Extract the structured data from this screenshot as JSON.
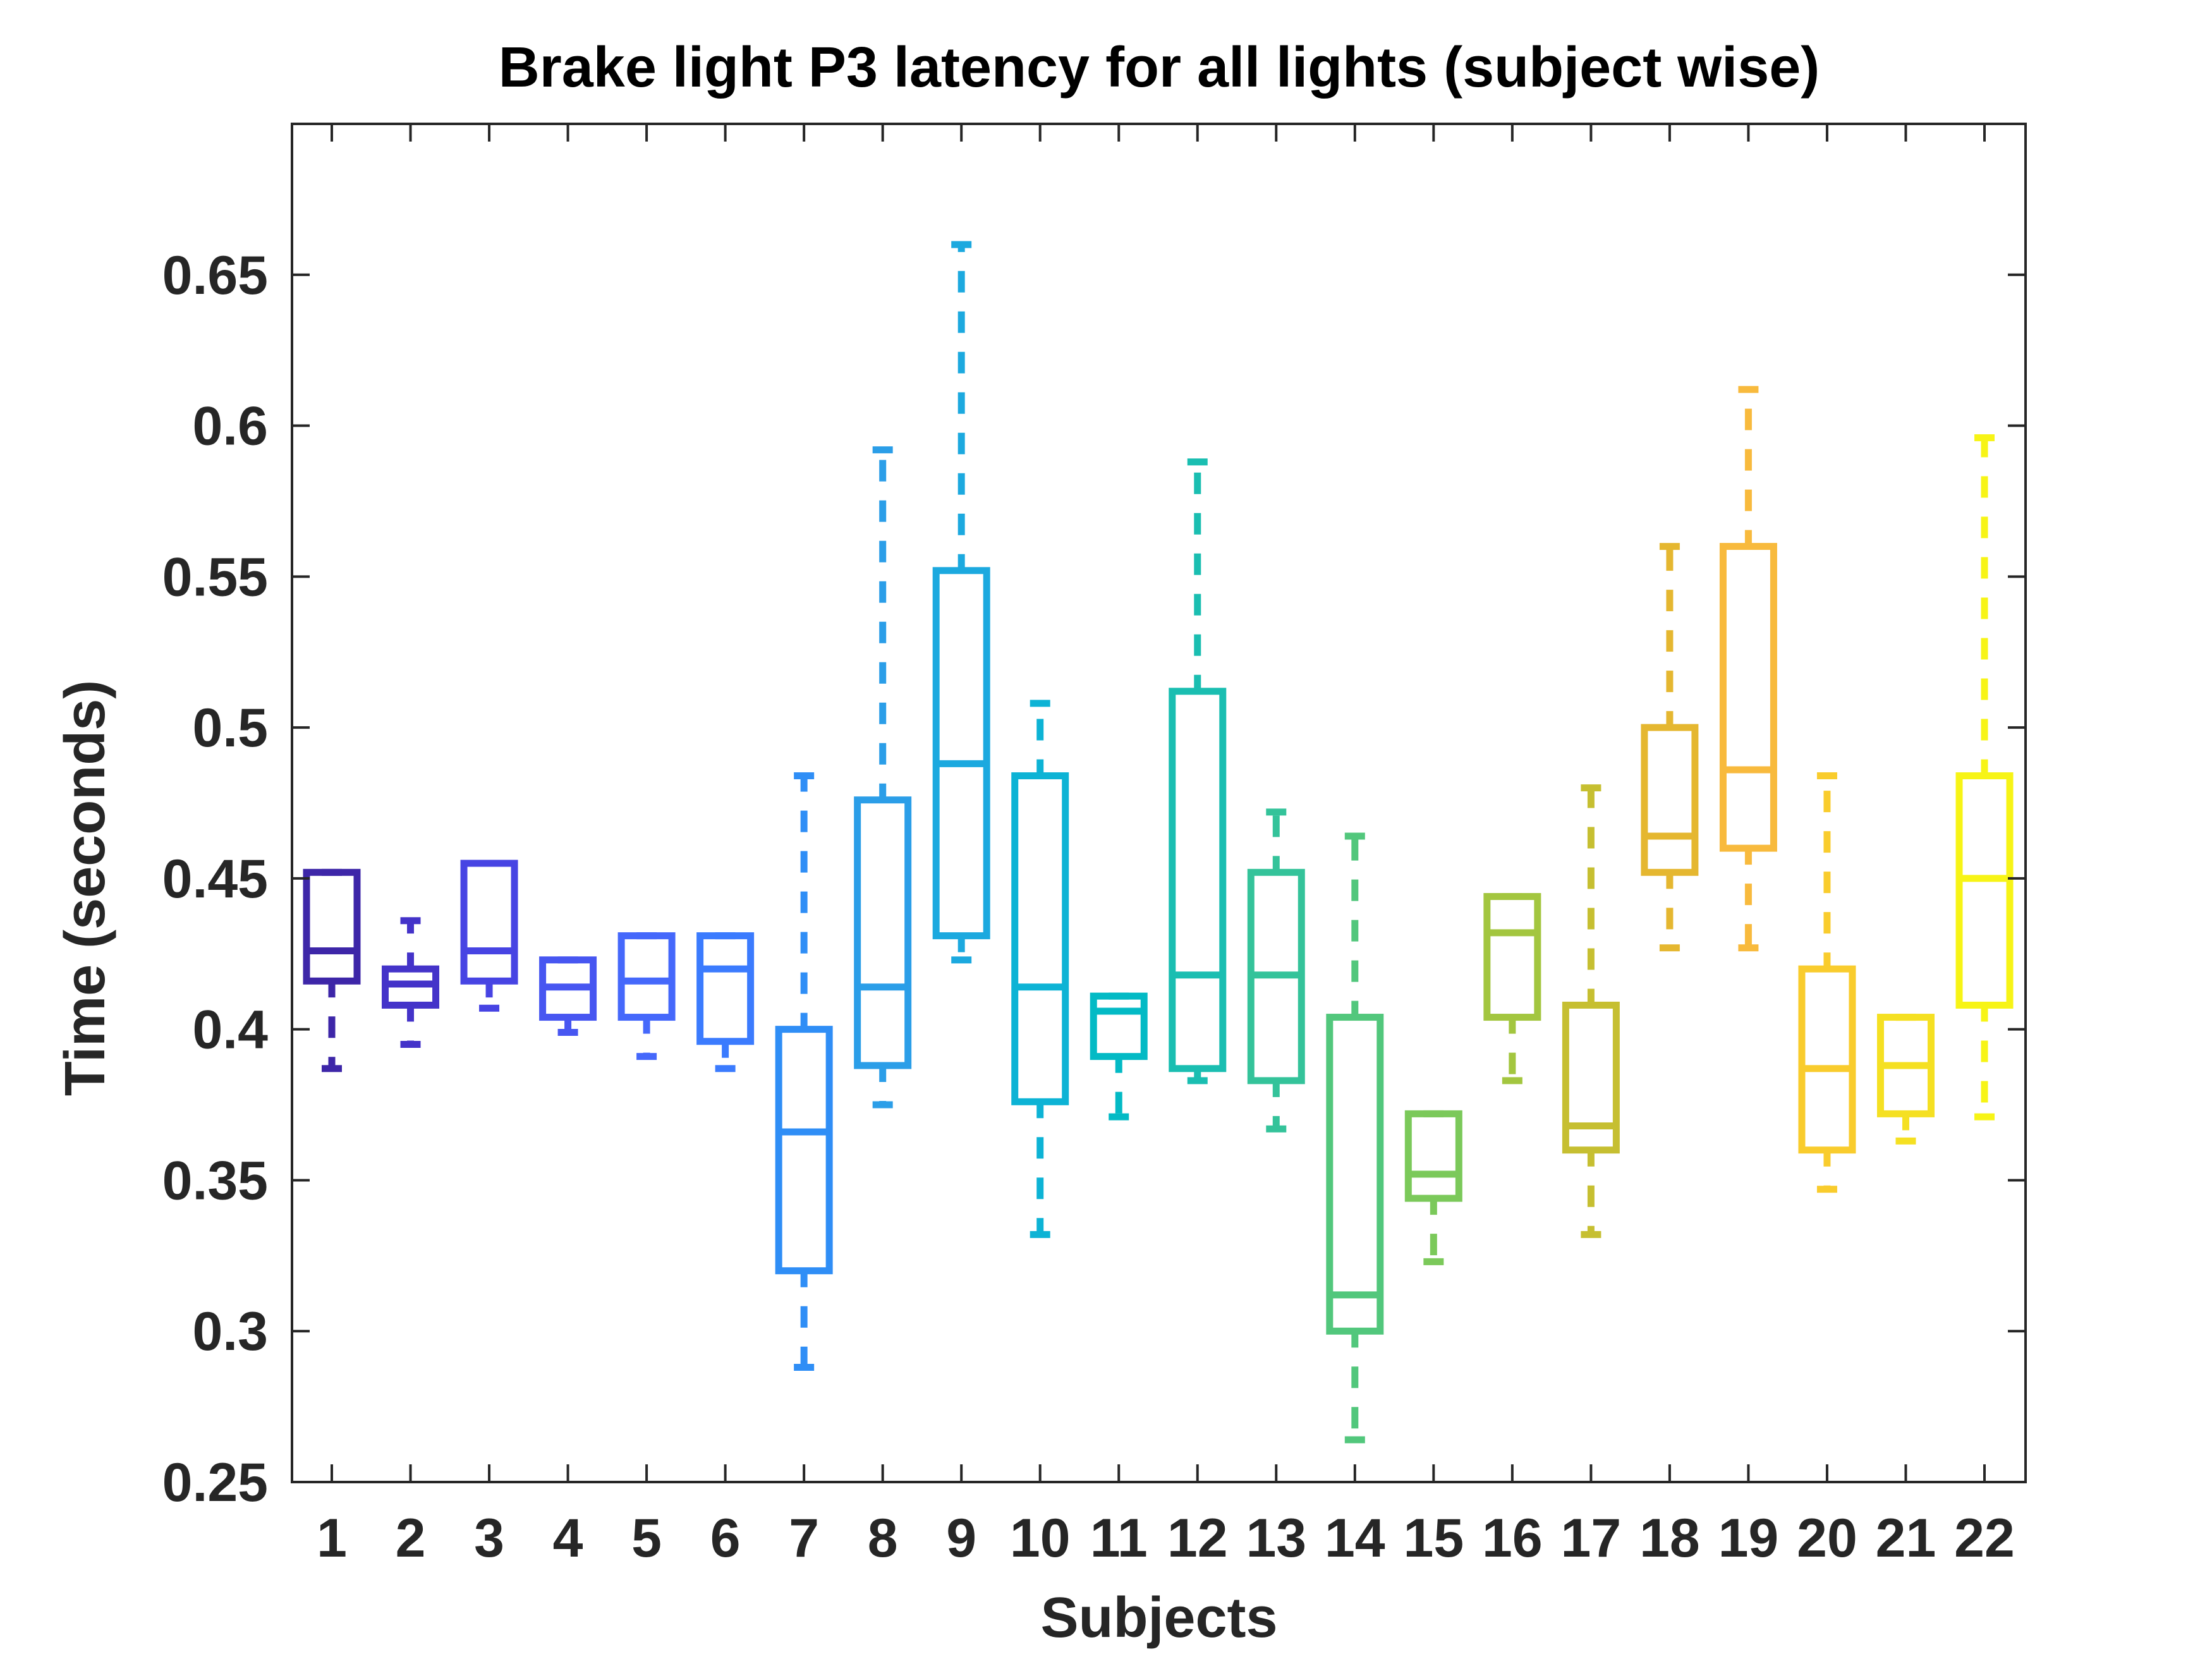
{
  "chart_data": {
    "type": "box",
    "title": "Brake light P3 latency for all lights (subject wise)",
    "xlabel": "Subjects",
    "ylabel": "Time (seconds)",
    "ylim": [
      0.25,
      0.7
    ],
    "yticks": [
      0.25,
      0.3,
      0.35,
      0.4,
      0.45,
      0.5,
      0.55,
      0.6,
      0.65
    ],
    "ytick_labels": [
      "0.25",
      "0.3",
      "0.35",
      "0.4",
      "0.45",
      "0.5",
      "0.55",
      "0.6",
      "0.65"
    ],
    "categories": [
      "1",
      "2",
      "3",
      "4",
      "5",
      "6",
      "7",
      "8",
      "9",
      "10",
      "11",
      "12",
      "13",
      "14",
      "15",
      "16",
      "17",
      "18",
      "19",
      "20",
      "21",
      "22"
    ],
    "grid": false,
    "colors": [
      "#3d26a8",
      "#4433c9",
      "#4744e3",
      "#4756f1",
      "#4568fb",
      "#3b7bfe",
      "#2f8ef6",
      "#2b9ee8",
      "#1ca9df",
      "#0db3d5",
      "#03bac5",
      "#1abeb1",
      "#34c39a",
      "#52c77c",
      "#7bc95a",
      "#a3c63f",
      "#c6bf31",
      "#e5b730",
      "#f8ba3d",
      "#f9cc2d",
      "#f5e022",
      "#f7f416"
    ],
    "boxes": [
      {
        "whisker_low": 0.387,
        "q1": 0.416,
        "median": 0.426,
        "q3": 0.452,
        "whisker_high": 0.452
      },
      {
        "whisker_low": 0.395,
        "q1": 0.408,
        "median": 0.415,
        "q3": 0.42,
        "whisker_high": 0.436
      },
      {
        "whisker_low": 0.407,
        "q1": 0.416,
        "median": 0.426,
        "q3": 0.455,
        "whisker_high": 0.455
      },
      {
        "whisker_low": 0.399,
        "q1": 0.404,
        "median": 0.414,
        "q3": 0.423,
        "whisker_high": 0.423
      },
      {
        "whisker_low": 0.391,
        "q1": 0.404,
        "median": 0.416,
        "q3": 0.431,
        "whisker_high": 0.431
      },
      {
        "whisker_low": 0.387,
        "q1": 0.396,
        "median": 0.42,
        "q3": 0.431,
        "whisker_high": 0.431
      },
      {
        "whisker_low": 0.288,
        "q1": 0.32,
        "median": 0.366,
        "q3": 0.4,
        "whisker_high": 0.484
      },
      {
        "whisker_low": 0.375,
        "q1": 0.388,
        "median": 0.414,
        "q3": 0.476,
        "whisker_high": 0.592
      },
      {
        "whisker_low": 0.423,
        "q1": 0.431,
        "median": 0.488,
        "q3": 0.552,
        "whisker_high": 0.66
      },
      {
        "whisker_low": 0.332,
        "q1": 0.376,
        "median": 0.414,
        "q3": 0.484,
        "whisker_high": 0.508
      },
      {
        "whisker_low": 0.371,
        "q1": 0.391,
        "median": 0.406,
        "q3": 0.411,
        "whisker_high": 0.411
      },
      {
        "whisker_low": 0.383,
        "q1": 0.387,
        "median": 0.418,
        "q3": 0.512,
        "whisker_high": 0.588
      },
      {
        "whisker_low": 0.367,
        "q1": 0.383,
        "median": 0.418,
        "q3": 0.452,
        "whisker_high": 0.472
      },
      {
        "whisker_low": 0.264,
        "q1": 0.3,
        "median": 0.312,
        "q3": 0.404,
        "whisker_high": 0.464
      },
      {
        "whisker_low": 0.323,
        "q1": 0.344,
        "median": 0.352,
        "q3": 0.372,
        "whisker_high": 0.372
      },
      {
        "whisker_low": 0.383,
        "q1": 0.404,
        "median": 0.432,
        "q3": 0.444,
        "whisker_high": 0.444
      },
      {
        "whisker_low": 0.332,
        "q1": 0.36,
        "median": 0.368,
        "q3": 0.408,
        "whisker_high": 0.48
      },
      {
        "whisker_low": 0.427,
        "q1": 0.452,
        "median": 0.464,
        "q3": 0.5,
        "whisker_high": 0.56
      },
      {
        "whisker_low": 0.427,
        "q1": 0.46,
        "median": 0.486,
        "q3": 0.56,
        "whisker_high": 0.612
      },
      {
        "whisker_low": 0.347,
        "q1": 0.36,
        "median": 0.387,
        "q3": 0.42,
        "whisker_high": 0.484
      },
      {
        "whisker_low": 0.363,
        "q1": 0.372,
        "median": 0.388,
        "q3": 0.404,
        "whisker_high": 0.404
      },
      {
        "whisker_low": 0.371,
        "q1": 0.408,
        "median": 0.45,
        "q3": 0.484,
        "whisker_high": 0.596
      }
    ]
  }
}
